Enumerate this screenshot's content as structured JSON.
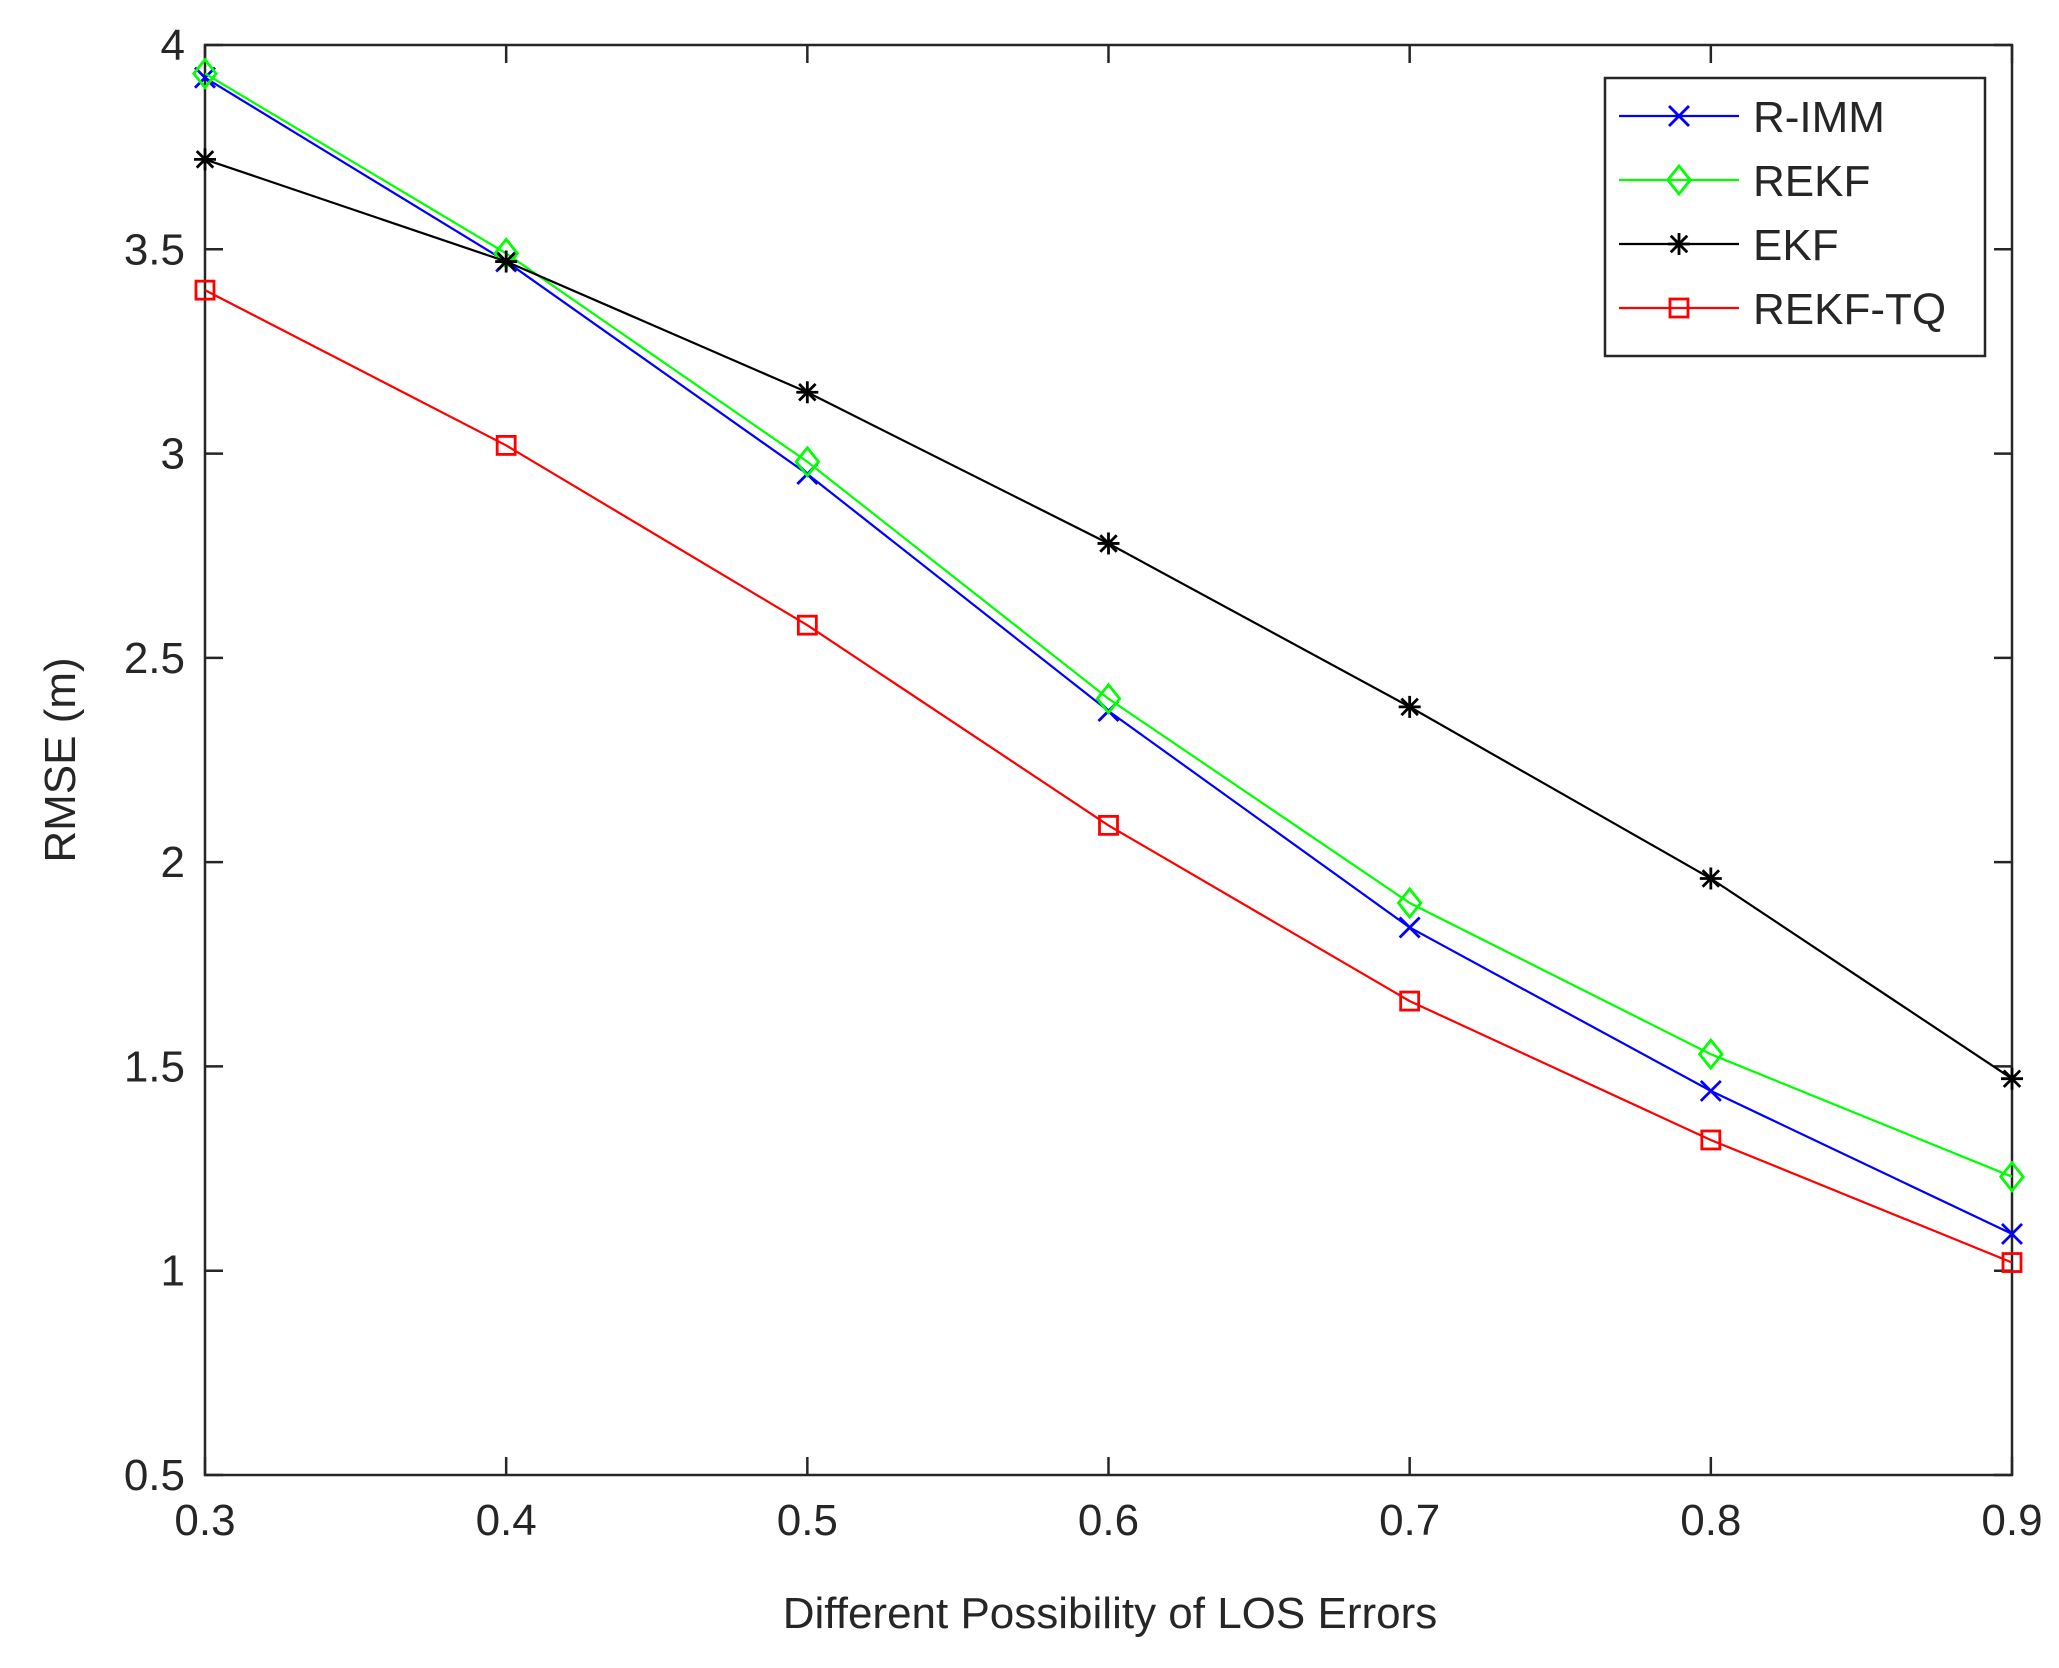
{
  "chart_data": {
    "type": "line",
    "title": "",
    "xlabel": "Different Possibility of LOS Errors",
    "ylabel": "RMSE (m)",
    "xlim": [
      0.3,
      0.9
    ],
    "ylim": [
      0.5,
      4
    ],
    "xticks": [
      "0.3",
      "0.4",
      "0.5",
      "0.6",
      "0.7",
      "0.8",
      "0.9"
    ],
    "yticks": [
      "0.5",
      "1",
      "1.5",
      "2",
      "2.5",
      "3",
      "3.5",
      "4"
    ],
    "x": [
      0.3,
      0.4,
      0.5,
      0.6,
      0.7,
      0.8,
      0.9
    ],
    "legend_position": "top-right",
    "grid": false,
    "series": [
      {
        "name": "R-IMM",
        "color": "#0000ff",
        "marker": "x",
        "values": [
          3.92,
          3.47,
          2.95,
          2.37,
          1.84,
          1.44,
          1.09
        ]
      },
      {
        "name": "REKF",
        "color": "#00ff00",
        "marker": "diamond",
        "values": [
          3.93,
          3.49,
          2.98,
          2.4,
          1.9,
          1.53,
          1.23
        ]
      },
      {
        "name": "EKF",
        "color": "#000000",
        "marker": "star",
        "values": [
          3.72,
          3.47,
          3.15,
          2.78,
          2.38,
          1.96,
          1.47
        ]
      },
      {
        "name": "REKF-TQ",
        "color": "#ff0000",
        "marker": "square",
        "values": [
          3.4,
          3.02,
          2.58,
          2.09,
          1.66,
          1.32,
          1.02
        ]
      }
    ]
  }
}
